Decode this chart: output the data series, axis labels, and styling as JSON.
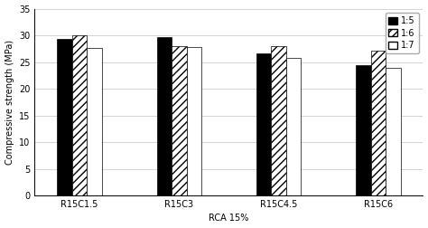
{
  "categories": [
    "R15C1.5",
    "R15C3",
    "R15C4.5",
    "R15C6"
  ],
  "series": {
    "1:5": [
      29.3,
      29.7,
      26.7,
      24.4
    ],
    "1:6": [
      30.0,
      28.0,
      28.0,
      27.2
    ],
    "1:7": [
      27.6,
      27.8,
      25.8,
      23.9
    ]
  },
  "xlabel": "RCA 15%",
  "ylabel": "Compressive strength (MPa)",
  "ylim": [
    0,
    35
  ],
  "yticks": [
    0,
    5,
    10,
    15,
    20,
    25,
    30,
    35
  ],
  "legend_labels": [
    "1:5",
    "1:6",
    "1:7"
  ],
  "bar_width": 0.15,
  "background_color": "#ffffff",
  "grid_color": "#cccccc",
  "axis_fontsize": 7,
  "tick_fontsize": 7,
  "legend_fontsize": 7
}
